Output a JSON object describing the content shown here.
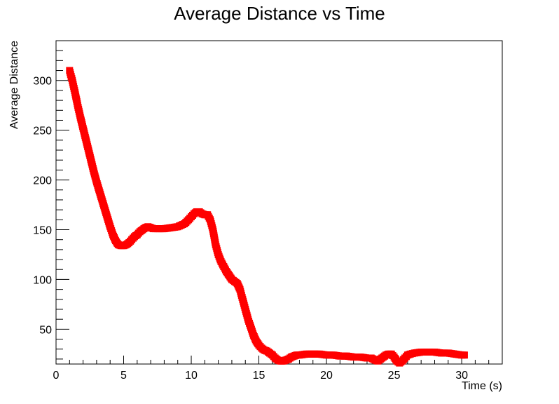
{
  "chart_data": {
    "type": "scatter",
    "title": "Average Distance vs Time",
    "xlabel": "Time (s)",
    "ylabel": "Average Distance",
    "xlim": [
      0,
      33
    ],
    "ylim": [
      15,
      340
    ],
    "xticks": [
      0,
      5,
      10,
      15,
      20,
      25,
      30
    ],
    "yticks": [
      50,
      100,
      150,
      200,
      250,
      300
    ],
    "grid": false,
    "marker_color": "#ff0000",
    "series": [
      {
        "points": [
          [
            1.0,
            310
          ],
          [
            1.2,
            300
          ],
          [
            1.4,
            288
          ],
          [
            1.6,
            275
          ],
          [
            1.8,
            263
          ],
          [
            2.0,
            252
          ],
          [
            2.2,
            241
          ],
          [
            2.4,
            230
          ],
          [
            2.6,
            219
          ],
          [
            2.8,
            208
          ],
          [
            3.0,
            198
          ],
          [
            3.2,
            189
          ],
          [
            3.4,
            180
          ],
          [
            3.6,
            171
          ],
          [
            3.8,
            162
          ],
          [
            4.0,
            153
          ],
          [
            4.2,
            145
          ],
          [
            4.4,
            139
          ],
          [
            4.6,
            135
          ],
          [
            4.8,
            134
          ],
          [
            5.0,
            134
          ],
          [
            5.2,
            135
          ],
          [
            5.4,
            137
          ],
          [
            5.6,
            140
          ],
          [
            5.8,
            143
          ],
          [
            6.0,
            145
          ],
          [
            6.2,
            148
          ],
          [
            6.4,
            150
          ],
          [
            6.6,
            152
          ],
          [
            6.8,
            153
          ],
          [
            7.0,
            152
          ],
          [
            7.2,
            151
          ],
          [
            7.5,
            151
          ],
          [
            8.0,
            151
          ],
          [
            8.5,
            152
          ],
          [
            9.0,
            153
          ],
          [
            9.5,
            156
          ],
          [
            9.8,
            160
          ],
          [
            10.0,
            163
          ],
          [
            10.2,
            166
          ],
          [
            10.4,
            168
          ],
          [
            10.6,
            168
          ],
          [
            10.8,
            166
          ],
          [
            11.0,
            165
          ],
          [
            11.2,
            165
          ],
          [
            11.4,
            160
          ],
          [
            11.6,
            150
          ],
          [
            11.8,
            135
          ],
          [
            12.0,
            125
          ],
          [
            12.2,
            118
          ],
          [
            12.4,
            113
          ],
          [
            12.6,
            108
          ],
          [
            12.8,
            104
          ],
          [
            13.0,
            100
          ],
          [
            13.2,
            98
          ],
          [
            13.4,
            96
          ],
          [
            13.6,
            90
          ],
          [
            13.8,
            80
          ],
          [
            14.0,
            70
          ],
          [
            14.2,
            60
          ],
          [
            14.4,
            52
          ],
          [
            14.6,
            44
          ],
          [
            14.8,
            38
          ],
          [
            15.0,
            34
          ],
          [
            15.2,
            31
          ],
          [
            15.4,
            29
          ],
          [
            15.6,
            28
          ],
          [
            15.8,
            26
          ],
          [
            16.0,
            24
          ],
          [
            16.2,
            21
          ],
          [
            16.4,
            19
          ],
          [
            16.6,
            18
          ],
          [
            16.8,
            18
          ],
          [
            17.0,
            19
          ],
          [
            17.2,
            20
          ],
          [
            17.4,
            22
          ],
          [
            17.6,
            23
          ],
          [
            17.8,
            24
          ],
          [
            18.0,
            24
          ],
          [
            18.5,
            25
          ],
          [
            19.0,
            25
          ],
          [
            19.5,
            25
          ],
          [
            20.0,
            24
          ],
          [
            20.5,
            24
          ],
          [
            21.0,
            23
          ],
          [
            21.5,
            23
          ],
          [
            22.0,
            22
          ],
          [
            22.5,
            22
          ],
          [
            23.0,
            21
          ],
          [
            23.3,
            21
          ],
          [
            23.6,
            19
          ],
          [
            23.8,
            18
          ],
          [
            24.0,
            20
          ],
          [
            24.2,
            22
          ],
          [
            24.4,
            24
          ],
          [
            24.6,
            25
          ],
          [
            24.8,
            25
          ],
          [
            25.0,
            22
          ],
          [
            25.2,
            18
          ],
          [
            25.4,
            16
          ],
          [
            25.6,
            18
          ],
          [
            25.8,
            21
          ],
          [
            26.0,
            24
          ],
          [
            26.2,
            25
          ],
          [
            26.5,
            26
          ],
          [
            27.0,
            27
          ],
          [
            27.5,
            27
          ],
          [
            28.0,
            27
          ],
          [
            28.5,
            26
          ],
          [
            29.0,
            26
          ],
          [
            29.5,
            25
          ],
          [
            30.0,
            24
          ],
          [
            30.2,
            24
          ]
        ]
      }
    ]
  }
}
